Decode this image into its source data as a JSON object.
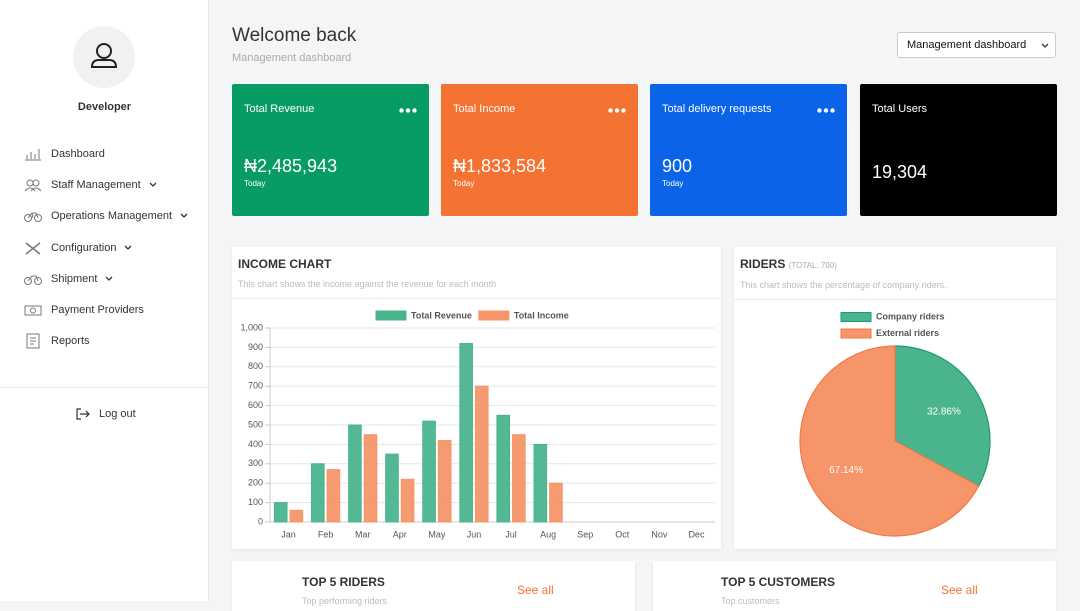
{
  "sidebar": {
    "user": "Developer",
    "menu": [
      "Dashboard",
      "Staff Management",
      "Operations Management",
      "Configuration",
      "Shipment",
      "Payment Providers",
      "Reports"
    ],
    "logout": "Log out"
  },
  "header": {
    "title": "Welcome back",
    "subtitle": "Management dashboard",
    "select": "Management dashboard"
  },
  "cards": [
    {
      "label": "Total Revenue",
      "value": "₦2,485,943",
      "note": "Today",
      "color": "#079c63"
    },
    {
      "label": "Total Income",
      "value": "₦1,833,584",
      "note": "Today",
      "color": "#f47232"
    },
    {
      "label": "Total delivery requests",
      "value": "900",
      "note": "Today",
      "color": "#0b63e8"
    },
    {
      "label": "Total Users",
      "value": "19,304",
      "color": "#000000"
    }
  ],
  "income_chart": {
    "title": "INCOME CHART",
    "subtitle": "This chart shows the income against the revenue for each month",
    "chart_data": {
      "type": "bar",
      "categories": [
        "Jan",
        "Feb",
        "Mar",
        "Apr",
        "May",
        "Jun",
        "Jul",
        "Aug",
        "Sep",
        "Oct",
        "Nov",
        "Dec"
      ],
      "series": [
        {
          "name": "Total Revenue",
          "color": "#4ab48d",
          "values": [
            100,
            300,
            500,
            350,
            520,
            920,
            550,
            400,
            null,
            null,
            null,
            null
          ]
        },
        {
          "name": "Total Income",
          "color": "#f6956a",
          "values": [
            60,
            270,
            450,
            220,
            420,
            700,
            450,
            200,
            null,
            null,
            null,
            null
          ]
        }
      ],
      "ylim": [
        0,
        1000
      ],
      "yticks": [
        0,
        100,
        200,
        300,
        400,
        500,
        600,
        700,
        800,
        900,
        {
          "value": 1000,
          "label": "1,000"
        }
      ],
      "grid": true
    }
  },
  "riders": {
    "title": "RIDERS",
    "total": "(TOTAL: 700)",
    "subtitle": "This chart shows the percentage of company riders.",
    "chart_data": {
      "type": "pie",
      "categories": [
        "Company riders",
        "External riders"
      ],
      "values": [
        32.86,
        67.14
      ],
      "value_labels": [
        "32.86%",
        "67.14%"
      ],
      "colors": [
        "#4ab48d",
        "#f6956a"
      ]
    }
  },
  "bottom": [
    {
      "title": "TOP 5 RIDERS",
      "link": "See all",
      "subtitle": "Top performing riders"
    },
    {
      "title": "TOP 5 CUSTOMERS",
      "link": "See all",
      "subtitle": "Top customers"
    }
  ]
}
